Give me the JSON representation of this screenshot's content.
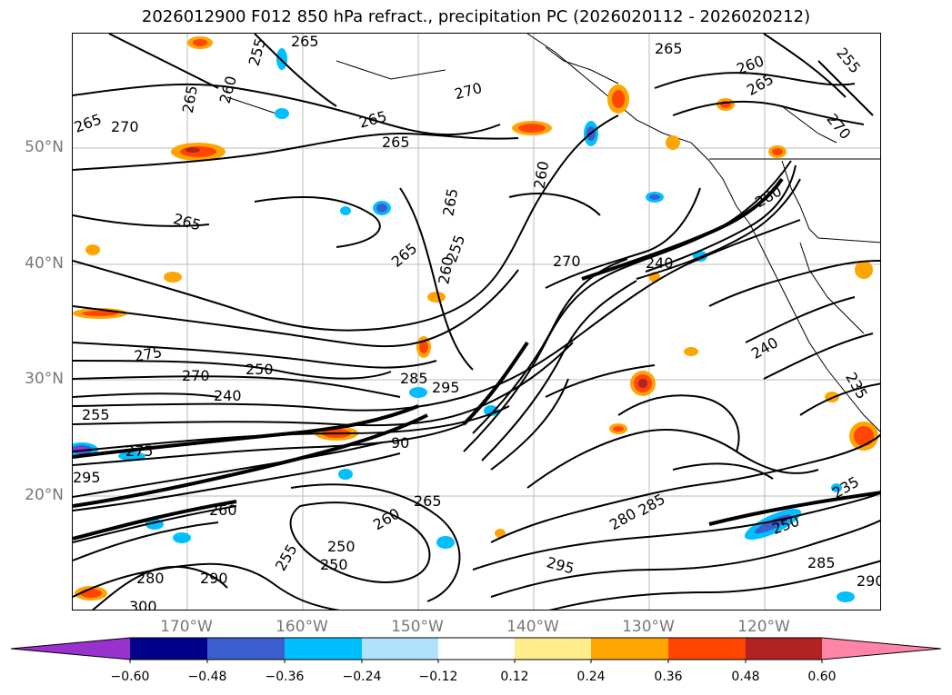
{
  "title": "2026012900 F012 850 hPa refract., precipitation PC (2026020112 - 2026020212)",
  "latitude_labels": [
    "50°N",
    "40°N",
    "30°N",
    "20°N"
  ],
  "longitude_labels": [
    "170°W",
    "160°W",
    "150°W",
    "140°W",
    "130°W",
    "120°W"
  ],
  "contour_labels": [
    "265",
    "255",
    "265",
    "260",
    "265",
    "270",
    "265",
    "265",
    "265",
    "260",
    "265",
    "265",
    "255",
    "260",
    "270",
    "270",
    "240",
    "275",
    "270",
    "250",
    "240",
    "255",
    "285",
    "295",
    "295",
    "275",
    "90",
    "250",
    "265",
    "260",
    "280",
    "285",
    "295",
    "255",
    "250",
    "260",
    "280",
    "290",
    "300",
    "235",
    "250",
    "285",
    "290",
    "240",
    "235",
    "265",
    "260",
    "255",
    "270",
    "280",
    "265"
  ],
  "colorbar": {
    "tick_labels": [
      "−0.60",
      "−0.48",
      "−0.36",
      "−0.24",
      "−0.12",
      "0.12",
      "0.24",
      "0.36",
      "0.48",
      "0.60"
    ],
    "colors": [
      "#9932cc",
      "#00008b",
      "#3a5fcd",
      "#00bfff",
      "#afe2fa",
      "#ffffff",
      "#ffec8b",
      "#ffa500",
      "#ff4500",
      "#b22222",
      "#ff85a8"
    ]
  }
}
